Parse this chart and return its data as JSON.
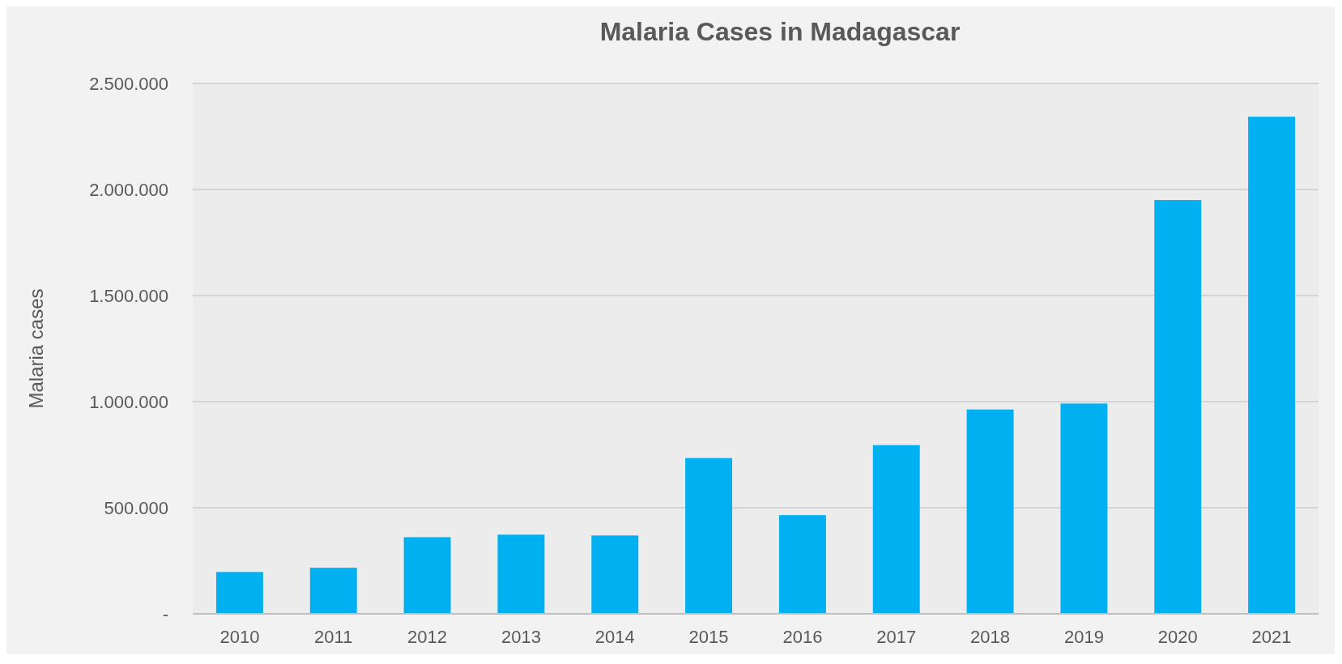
{
  "chart_data": {
    "type": "bar",
    "title": "Malaria Cases in Madagascar",
    "ylabel": "Malaria cases",
    "categories": [
      "2010",
      "2011",
      "2012",
      "2013",
      "2014",
      "2015",
      "2016",
      "2017",
      "2018",
      "2019",
      "2020",
      "2021"
    ],
    "values": [
      197000,
      217000,
      361000,
      373000,
      369000,
      734000,
      465000,
      795000,
      963000,
      991000,
      1950000,
      2343000
    ],
    "color": "#00b0f0",
    "ylim": [
      0,
      2500000
    ],
    "yticks": [
      {
        "value": 0,
        "label": "-"
      },
      {
        "value": 500000,
        "label": "500.000"
      },
      {
        "value": 1000000,
        "label": "1.000.000"
      },
      {
        "value": 1500000,
        "label": "1.500.000"
      },
      {
        "value": 2000000,
        "label": "2.000.000"
      },
      {
        "value": 2500000,
        "label": "2.500.000"
      }
    ],
    "grid": "y"
  }
}
